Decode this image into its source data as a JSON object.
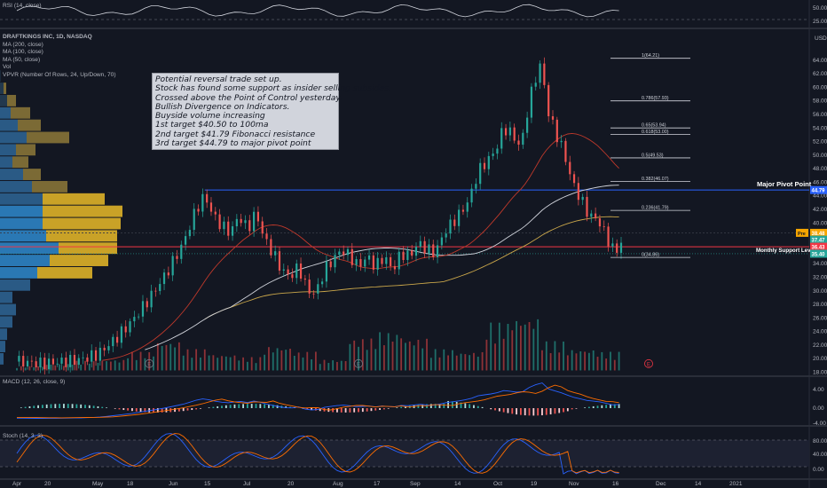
{
  "rsi_pane": {
    "label": "RSI (14, close)",
    "ticks": [
      "50.00",
      "25.00"
    ]
  },
  "main_pane": {
    "legend": [
      "DRAFTKINGS INC, 1D, NASDAQ",
      "MA (200, close)",
      "MA (100, close)",
      "MA (50, close)",
      "Vol",
      "VPVR (Number Of Rows, 24, Up/Down, 70)"
    ],
    "currency": "USD",
    "ticks": [
      "64.00",
      "62.00",
      "60.00",
      "58.00",
      "56.00",
      "54.00",
      "52.00",
      "50.00",
      "48.00",
      "46.00",
      "44.00",
      "42.00",
      "40.00",
      "38.00",
      "36.00",
      "34.00",
      "32.00",
      "30.00",
      "28.00",
      "26.00",
      "24.00",
      "22.00",
      "20.00",
      "18.00"
    ],
    "note_lines": [
      "Potential reversal trade set up.",
      "Stock has found some support as insider selling subsides.",
      "Crossed above the Point of Control yesterday.",
      "Bullish Divergence on Indicators.",
      "Buyside volume increasing",
      "1st target $40.50 to 100ma",
      "2nd target $41.79 Fibonacci resistance",
      "3rd target $44.79 to major pivot point"
    ],
    "fib_levels": [
      {
        "label": "1(64.21)",
        "value": 64.21
      },
      {
        "label": "0.786(57.93)",
        "value": 57.93
      },
      {
        "label": "0.65(53.94)",
        "value": 53.94
      },
      {
        "label": "0.618(53.00)",
        "value": 53.0
      },
      {
        "label": "0.5(49.53)",
        "value": 49.53
      },
      {
        "label": "0.382(46.07)",
        "value": 46.07
      },
      {
        "label": "0.236(41.79)",
        "value": 41.79
      },
      {
        "label": "0(34.86)",
        "value": 34.86
      }
    ],
    "annotations": {
      "major_pivot": "Major Pivot Point",
      "monthly_support": "Monthly Support Level"
    },
    "price_badges": [
      {
        "label": "44.79",
        "value": 44.79,
        "color": "#2962ff"
      },
      {
        "tag": "Pre",
        "label": "38.48",
        "value": 38.48,
        "color": "#f7a600"
      },
      {
        "label": "37.47",
        "value": 37.47,
        "color": "#26a69a"
      },
      {
        "label": "36.43",
        "value": 36.43,
        "color": "#f23645"
      },
      {
        "label": "35.40",
        "value": 35.4,
        "color": "#26a69a"
      }
    ],
    "event_markers": [
      "E",
      "E",
      "E"
    ]
  },
  "macd_pane": {
    "label": "MACD (12, 26, close, 9)",
    "ticks": [
      "4.00",
      "0.00",
      "-4.00"
    ]
  },
  "stoch_pane": {
    "label": "Stoch (14, 3, 3)",
    "ticks": [
      "80.00",
      "40.00",
      "0.00"
    ]
  },
  "time_axis": [
    "Apr",
    "20",
    "May",
    "18",
    "Jun",
    "15",
    "Jul",
    "20",
    "Aug",
    "17",
    "Sep",
    "14",
    "Oct",
    "19",
    "Nov",
    "16",
    "Dec",
    "14",
    "2021"
  ],
  "colors": {
    "up": "#26a69a",
    "down": "#ef5350",
    "ma200": "#d1d4dc",
    "ma100": "#c9a64a",
    "ma50": "#c0392b",
    "pivot_line": "#2962ff",
    "support_line": "#f23645",
    "vp_up": "#2a78b4",
    "vp_down": "#c9a227"
  },
  "chart_data": {
    "type": "candlestick",
    "title": "DRAFTKINGS INC, 1D, NASDAQ",
    "ylabel": "USD",
    "ylim": [
      18,
      66
    ],
    "x_labels": [
      "Apr",
      "20",
      "May",
      "18",
      "Jun",
      "15",
      "Jul",
      "20",
      "Aug",
      "17",
      "Sep",
      "14",
      "Oct",
      "19",
      "Nov"
    ],
    "horizontal_levels": [
      {
        "name": "Major Pivot Point",
        "value": 44.79
      },
      {
        "name": "Monthly Support Level",
        "value": 36.43
      }
    ],
    "price_path": [
      [
        0,
        19.5
      ],
      [
        12,
        19.2
      ],
      [
        22,
        19.5
      ],
      [
        30,
        19.8
      ],
      [
        38,
        20.6
      ],
      [
        46,
        22.8
      ],
      [
        54,
        25.5
      ],
      [
        62,
        28.8
      ],
      [
        70,
        32.5
      ],
      [
        78,
        37.0
      ],
      [
        84,
        42.0
      ],
      [
        88,
        44.0
      ],
      [
        92,
        41.0
      ],
      [
        96,
        39.5
      ],
      [
        100,
        38.5
      ],
      [
        104,
        41.0
      ],
      [
        108,
        39.0
      ],
      [
        112,
        41.5
      ],
      [
        116,
        37.5
      ],
      [
        120,
        35.5
      ],
      [
        124,
        33.0
      ],
      [
        128,
        32.0
      ],
      [
        132,
        33.5
      ],
      [
        136,
        30.0
      ],
      [
        140,
        29.5
      ],
      [
        144,
        33.0
      ],
      [
        148,
        34.5
      ],
      [
        152,
        36.0
      ],
      [
        156,
        35.0
      ],
      [
        160,
        33.5
      ],
      [
        164,
        35.0
      ],
      [
        168,
        33.5
      ],
      [
        172,
        35.0
      ],
      [
        176,
        33.0
      ],
      [
        180,
        35.5
      ],
      [
        184,
        35.0
      ],
      [
        188,
        37.0
      ],
      [
        192,
        36.0
      ],
      [
        196,
        35.5
      ],
      [
        200,
        38.5
      ],
      [
        204,
        40.0
      ],
      [
        208,
        41.5
      ],
      [
        212,
        43.5
      ],
      [
        216,
        47.5
      ],
      [
        220,
        49.0
      ],
      [
        224,
        50.5
      ],
      [
        228,
        54.0
      ],
      [
        232,
        53.0
      ],
      [
        236,
        51.0
      ],
      [
        240,
        58.0
      ],
      [
        244,
        62.5
      ],
      [
        246,
        63.5
      ],
      [
        248,
        57.0
      ],
      [
        252,
        53.5
      ],
      [
        256,
        50.5
      ],
      [
        260,
        46.0
      ],
      [
        264,
        43.5
      ],
      [
        268,
        41.0
      ],
      [
        272,
        40.5
      ],
      [
        276,
        38.0
      ],
      [
        280,
        35.5
      ],
      [
        283,
        37.0
      ]
    ],
    "volume_relative": [
      0.08,
      0.12,
      0.18,
      0.2,
      0.35,
      0.55,
      0.4,
      0.3,
      0.25,
      0.45,
      0.35,
      0.2,
      0.6,
      0.72,
      0.6,
      0.4,
      0.35,
      0.9,
      1.0,
      0.55,
      0.4,
      0.35
    ]
  }
}
